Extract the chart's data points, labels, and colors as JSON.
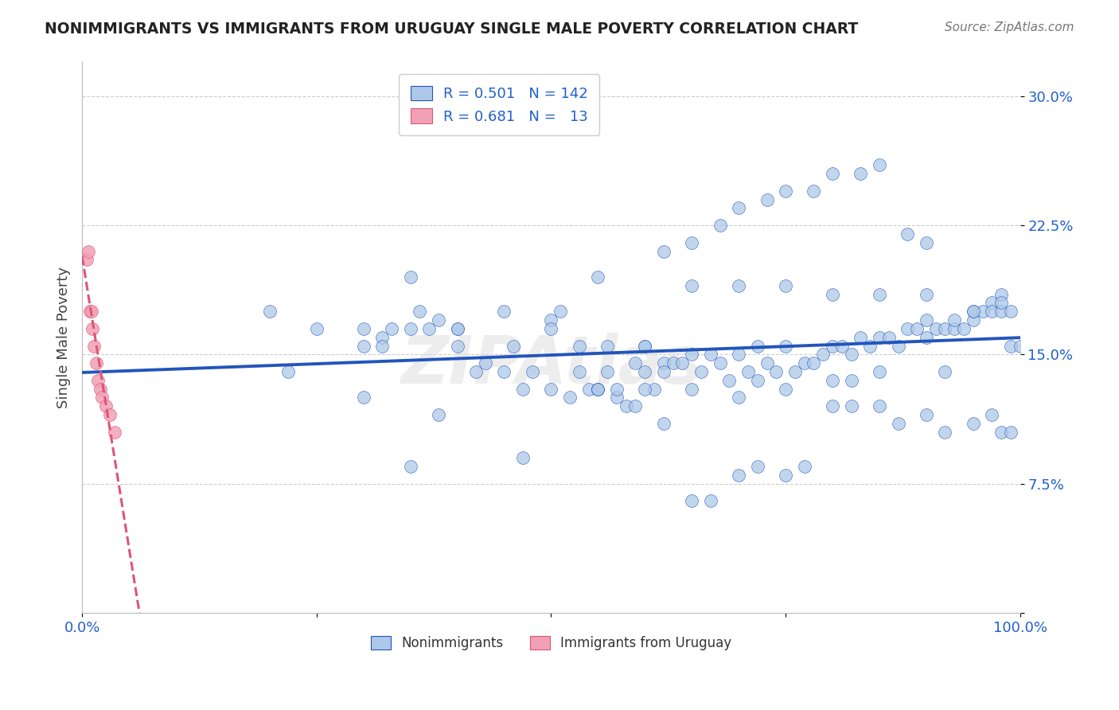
{
  "title": "NONIMMIGRANTS VS IMMIGRANTS FROM URUGUAY SINGLE MALE POVERTY CORRELATION CHART",
  "source": "Source: ZipAtlas.com",
  "ylabel": "Single Male Poverty",
  "xlim": [
    0.0,
    1.0
  ],
  "ylim": [
    0.0,
    0.32
  ],
  "blue_R": 0.501,
  "blue_N": 142,
  "pink_R": 0.681,
  "pink_N": 13,
  "blue_color": "#adc8e8",
  "pink_color": "#f2a0b5",
  "blue_line_color": "#2255bb",
  "pink_line_color": "#dd5577",
  "background_color": "#ffffff",
  "grid_color": "#cccccc",
  "legend_R_color": "#2060cc",
  "nonimmigrant_x": [
    0.2,
    0.22,
    0.25,
    0.3,
    0.32,
    0.35,
    0.38,
    0.4,
    0.42,
    0.45,
    0.46,
    0.47,
    0.48,
    0.5,
    0.51,
    0.52,
    0.53,
    0.54,
    0.55,
    0.55,
    0.56,
    0.57,
    0.58,
    0.59,
    0.6,
    0.6,
    0.61,
    0.62,
    0.63,
    0.64,
    0.65,
    0.65,
    0.66,
    0.67,
    0.68,
    0.69,
    0.7,
    0.7,
    0.71,
    0.72,
    0.73,
    0.74,
    0.75,
    0.75,
    0.76,
    0.77,
    0.78,
    0.79,
    0.8,
    0.8,
    0.81,
    0.82,
    0.83,
    0.84,
    0.85,
    0.85,
    0.86,
    0.87,
    0.88,
    0.89,
    0.9,
    0.9,
    0.91,
    0.92,
    0.93,
    0.94,
    0.95,
    0.95,
    0.96,
    0.97,
    0.97,
    0.98,
    0.98,
    0.99,
    0.99,
    1.0,
    0.35,
    0.4,
    0.45,
    0.5,
    0.55,
    0.6,
    0.65,
    0.7,
    0.75,
    0.8,
    0.85,
    0.9,
    0.3,
    0.32,
    0.55,
    0.57,
    0.6,
    0.62,
    0.65,
    0.67,
    0.7,
    0.72,
    0.75,
    0.77,
    0.8,
    0.82,
    0.85,
    0.87,
    0.9,
    0.92,
    0.95,
    0.97,
    0.98,
    0.99,
    0.62,
    0.65,
    0.68,
    0.7,
    0.73,
    0.75,
    0.78,
    0.8,
    0.83,
    0.85,
    0.88,
    0.9,
    0.93,
    0.95,
    0.98,
    0.5,
    0.53,
    0.56,
    0.59,
    0.62,
    0.72,
    0.82,
    0.92,
    0.3,
    0.33,
    0.37,
    0.4,
    0.43,
    0.47,
    0.35,
    0.36,
    0.38
  ],
  "nonimmigrant_y": [
    0.175,
    0.14,
    0.165,
    0.125,
    0.16,
    0.195,
    0.115,
    0.165,
    0.14,
    0.14,
    0.155,
    0.13,
    0.14,
    0.13,
    0.175,
    0.125,
    0.14,
    0.13,
    0.13,
    0.195,
    0.14,
    0.125,
    0.12,
    0.12,
    0.14,
    0.155,
    0.13,
    0.145,
    0.145,
    0.145,
    0.15,
    0.19,
    0.14,
    0.15,
    0.145,
    0.135,
    0.15,
    0.19,
    0.14,
    0.155,
    0.145,
    0.14,
    0.155,
    0.19,
    0.14,
    0.145,
    0.145,
    0.15,
    0.155,
    0.185,
    0.155,
    0.15,
    0.16,
    0.155,
    0.16,
    0.185,
    0.16,
    0.155,
    0.165,
    0.165,
    0.17,
    0.185,
    0.165,
    0.165,
    0.165,
    0.165,
    0.17,
    0.175,
    0.175,
    0.18,
    0.175,
    0.175,
    0.185,
    0.175,
    0.155,
    0.155,
    0.165,
    0.165,
    0.175,
    0.17,
    0.13,
    0.155,
    0.13,
    0.125,
    0.13,
    0.135,
    0.14,
    0.16,
    0.165,
    0.155,
    0.13,
    0.13,
    0.13,
    0.11,
    0.065,
    0.065,
    0.08,
    0.085,
    0.08,
    0.085,
    0.12,
    0.12,
    0.12,
    0.11,
    0.115,
    0.105,
    0.11,
    0.115,
    0.105,
    0.105,
    0.21,
    0.215,
    0.225,
    0.235,
    0.24,
    0.245,
    0.245,
    0.255,
    0.255,
    0.26,
    0.22,
    0.215,
    0.17,
    0.175,
    0.18,
    0.165,
    0.155,
    0.155,
    0.145,
    0.14,
    0.135,
    0.135,
    0.14,
    0.155,
    0.165,
    0.165,
    0.155,
    0.145,
    0.09,
    0.085,
    0.175,
    0.17
  ],
  "immigrant_x": [
    0.005,
    0.007,
    0.008,
    0.01,
    0.011,
    0.013,
    0.015,
    0.017,
    0.019,
    0.021,
    0.025,
    0.03,
    0.035
  ],
  "immigrant_y": [
    0.205,
    0.21,
    0.175,
    0.175,
    0.165,
    0.155,
    0.145,
    0.135,
    0.13,
    0.125,
    0.12,
    0.115,
    0.105
  ]
}
